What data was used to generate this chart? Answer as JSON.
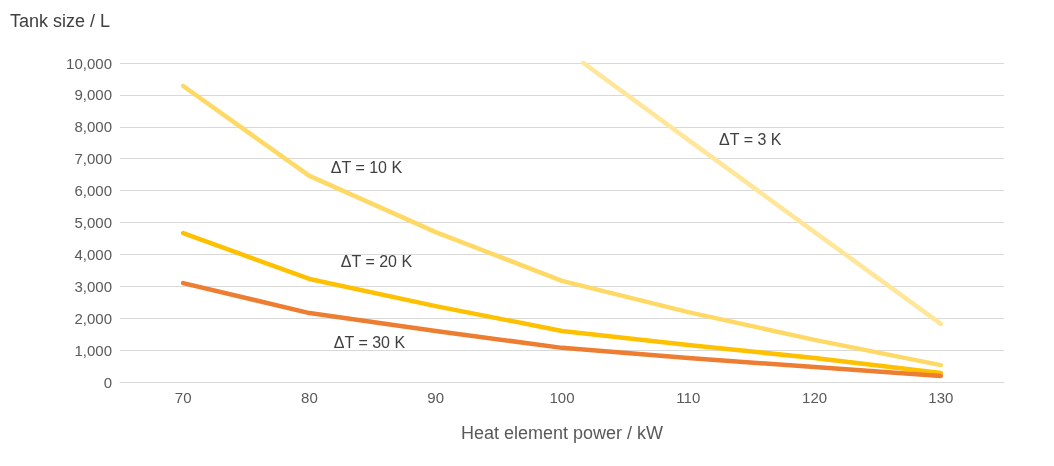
{
  "chart_data": {
    "type": "line",
    "xlabel": "Heat element power / kW",
    "ylabel": "Tank size / L",
    "xlim": [
      65,
      135
    ],
    "xticks": [
      70,
      80,
      90,
      100,
      110,
      120,
      130
    ],
    "ylim": [
      0,
      10000
    ],
    "yticks": [
      0,
      {
        "value": 1000,
        "label": "1,000"
      },
      {
        "value": 2000,
        "label": "2,000"
      },
      {
        "value": 3000,
        "label": "3,000"
      },
      {
        "value": 4000,
        "label": "4,000"
      },
      {
        "value": 5000,
        "label": "5,000"
      },
      {
        "value": 6000,
        "label": "6,000"
      },
      {
        "value": 7000,
        "label": "7,000"
      },
      {
        "value": 8000,
        "label": "8,000"
      },
      {
        "value": 9000,
        "label": "9,000"
      },
      {
        "value": 10000,
        "label": "10,000"
      }
    ],
    "grid": "y",
    "marker": "none",
    "line_style": "solid",
    "x": [
      70,
      80,
      90,
      100,
      110,
      120,
      130
    ],
    "series": [
      {
        "name": "ΔT = 3 K",
        "color": "#ffe699",
        "x": [
          101.7,
          110,
          120,
          130
        ],
        "values": [
          10000,
          7590,
          4700,
          1820
        ]
      },
      {
        "name": "ΔT = 10 K",
        "color": "#ffd966",
        "values": [
          9280,
          6460,
          4700,
          3170,
          2190,
          1320,
          530
        ]
      },
      {
        "name": "ΔT = 20 K",
        "color": "#ffc000",
        "values": [
          4670,
          3230,
          2380,
          1600,
          1160,
          750,
          280
        ]
      },
      {
        "name": "ΔT = 30 K",
        "color": "#ed7d31",
        "values": [
          3100,
          2160,
          1600,
          1070,
          750,
          470,
          190
        ]
      }
    ]
  }
}
